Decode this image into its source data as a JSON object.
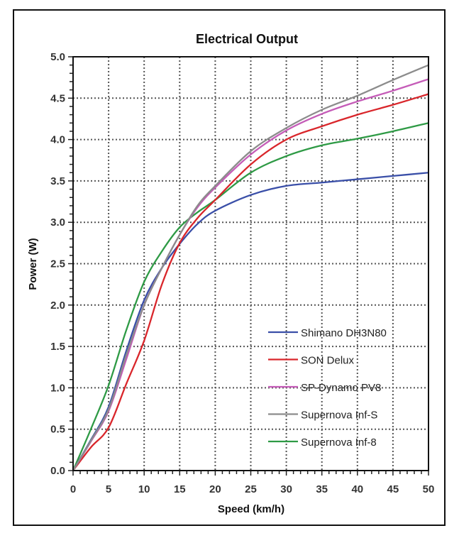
{
  "chart_data": {
    "type": "line",
    "title": "Electrical Output",
    "xlabel": "Speed (km/h)",
    "ylabel": "Power (W)",
    "xlim": [
      0,
      50
    ],
    "ylim": [
      0,
      5
    ],
    "xticks": [
      "0",
      "5",
      "10",
      "15",
      "20",
      "25",
      "30",
      "35",
      "40",
      "45",
      "50"
    ],
    "yticks": [
      "0.0",
      "0.5",
      "1.0",
      "1.5",
      "2.0",
      "2.5",
      "3.0",
      "3.5",
      "4.0",
      "4.5",
      "5.0"
    ],
    "grid": true,
    "legend_position": "bottom-right",
    "x": [
      0,
      2.5,
      5,
      7.5,
      10,
      12.5,
      15,
      17.5,
      20,
      25,
      30,
      35,
      40,
      45,
      50
    ],
    "series": [
      {
        "name": "Shimano DH3N80",
        "color": "#3a4fa8",
        "values": [
          0,
          0.37,
          0.77,
          1.45,
          2.06,
          2.45,
          2.74,
          2.98,
          3.14,
          3.33,
          3.44,
          3.48,
          3.52,
          3.56,
          3.6
        ]
      },
      {
        "name": "SON Delux",
        "color": "#d9262b",
        "values": [
          0,
          0.28,
          0.52,
          1.05,
          1.57,
          2.25,
          2.75,
          3.05,
          3.27,
          3.7,
          4.0,
          4.16,
          4.3,
          4.42,
          4.55
        ]
      },
      {
        "name": "SP-Dynamo PV8",
        "color": "#c55cb8",
        "values": [
          0,
          0.35,
          0.72,
          1.35,
          2.0,
          2.45,
          2.85,
          3.18,
          3.42,
          3.82,
          4.11,
          4.31,
          4.46,
          4.59,
          4.73
        ]
      },
      {
        "name": "Supernova Inf-S",
        "color": "#8c8c8c",
        "values": [
          0,
          0.36,
          0.74,
          1.4,
          2.0,
          2.45,
          2.85,
          3.2,
          3.44,
          3.86,
          4.14,
          4.36,
          4.53,
          4.72,
          4.9
        ]
      },
      {
        "name": "Supernova Inf-8",
        "color": "#2e9a45",
        "values": [
          0,
          0.5,
          1.03,
          1.7,
          2.28,
          2.65,
          2.94,
          3.12,
          3.27,
          3.6,
          3.8,
          3.93,
          4.01,
          4.1,
          4.2
        ]
      }
    ]
  }
}
